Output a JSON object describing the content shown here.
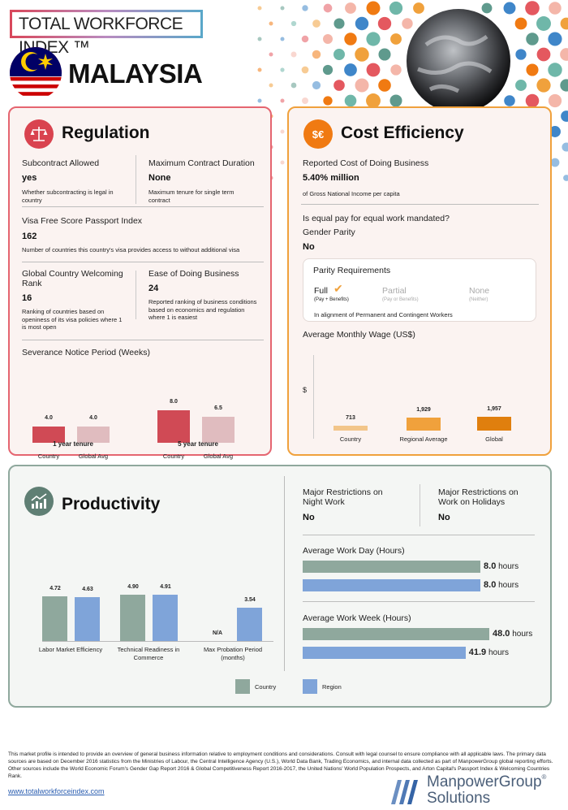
{
  "header": {
    "index_title": "TOTAL WORKFORCE INDEX ™",
    "country": "MALAYSIA"
  },
  "regulation": {
    "title": "Regulation",
    "subcontract": {
      "label": "Subcontract Allowed",
      "value": "yes",
      "desc": "Whether subcontracting is legal in country"
    },
    "max_contract": {
      "label": "Maximum Contract Duration",
      "value": "None",
      "desc": "Maximum tenure for single term contract"
    },
    "visa": {
      "label": "Visa Free Score Passport Index",
      "value": "162",
      "desc": "Number of countries this country's visa provides access to without additional visa"
    },
    "welcoming": {
      "label": "Global Country Welcoming Rank",
      "value": "16",
      "desc": "Ranking of countries based on openiness of its visa policies where 1 is most open"
    },
    "ease": {
      "label": "Ease of Doing Business",
      "value": "24",
      "desc": "Reported ranking of business conditions based on economics and regulation where 1 is easiest"
    },
    "severance_title": "Severance Notice Period (Weeks)"
  },
  "cost": {
    "title": "Cost Efficiency",
    "cost_label": "Reported Cost of Doing Business",
    "cost_value": "5.40% million",
    "cost_desc": "of Gross National Income per capita",
    "equal_pay_q": "Is equal pay for equal work mandated?",
    "gender_label": "Gender Parity",
    "gender_value": "No",
    "parity_title": "Parity Requirements",
    "parity_full": "Full",
    "parity_full_sub": "(Pay + Benefits)",
    "parity_partial": "Partial",
    "parity_partial_sub": "(Pay or Benefits)",
    "parity_none": "None",
    "parity_none_sub": "(Neither)",
    "parity_note": "In alignment of Permanent and Contingent Workers",
    "wage_title": "Average Monthly Wage (US$)",
    "wage_axis": "$"
  },
  "productivity": {
    "title": "Productivity",
    "night": {
      "label": "Major Restrictions on Night Work",
      "value": "No"
    },
    "holidays": {
      "label": "Major Restrictions on Work on Holidays",
      "value": "No"
    },
    "workday_title": "Average Work Day (Hours)",
    "workweek_title": "Average Work Week (Hours)",
    "unit": "hours"
  },
  "chart_data": [
    {
      "type": "bar",
      "title": "Severance Notice Period (Weeks)",
      "groups": [
        "1 year tenure",
        "5 year tenure"
      ],
      "categories": [
        "Country",
        "Global Avg"
      ],
      "series": [
        {
          "group": "1 year tenure",
          "values": [
            4.0,
            4.0
          ],
          "labels": [
            "4.0",
            "4.0"
          ]
        },
        {
          "group": "5 year tenure",
          "values": [
            8.0,
            6.5
          ],
          "labels": [
            "8.0",
            "6.5"
          ]
        }
      ],
      "colors": {
        "country": "#d04a55",
        "global": "#e0bcbf"
      }
    },
    {
      "type": "bar",
      "title": "Average Monthly Wage (US$)",
      "ylabel": "$",
      "categories": [
        "Country",
        "Regional Average",
        "Global"
      ],
      "values": [
        713,
        1929,
        1957
      ],
      "labels": [
        "713",
        "1,929",
        "1,957"
      ],
      "colors": [
        "#f2c58a",
        "#f0a13c",
        "#e07f0e"
      ]
    },
    {
      "type": "bar",
      "categories": [
        "Labor Market Efficiency",
        "Technical Readiness in Commerce",
        "Max Probation Period (months)"
      ],
      "series": [
        {
          "name": "Country",
          "values": [
            4.72,
            4.9,
            null
          ],
          "labels": [
            "4.72",
            "4.90",
            "N/A"
          ]
        },
        {
          "name": "Region",
          "values": [
            4.63,
            4.91,
            3.54
          ],
          "labels": [
            "4.63",
            "4.91",
            "3.54"
          ]
        }
      ],
      "colors": {
        "country": "#8fa89d",
        "region": "#7fa4d9"
      }
    },
    {
      "type": "bar",
      "orientation": "horizontal",
      "title": "Average Work Day (Hours)",
      "series": [
        {
          "name": "Country",
          "value": 8.0,
          "label": "8.0"
        },
        {
          "name": "Region",
          "value": 8.0,
          "label": "8.0"
        }
      ]
    },
    {
      "type": "bar",
      "orientation": "horizontal",
      "title": "Average Work Week (Hours)",
      "series": [
        {
          "name": "Country",
          "value": 48.0,
          "label": "48.0"
        },
        {
          "name": "Region",
          "value": 41.9,
          "label": "41.9"
        }
      ]
    }
  ],
  "legend": {
    "country": "Country",
    "region": "Region"
  },
  "footer": {
    "text": "This market profile is intended to provide an overview of general business information relative to employment conditions and considerations. Consult with legal counsel to ensure compliance with all applicable laws. The primary data sources are based on December 2016 statistics from the Ministries of Labour, the Central Intelligence Agency (U.S.), World Data Bank, Trading Economics, and internal data collected as part of ManpowerGroup global reporting efforts. Other sources include the World Economic Forum's  Gender Gap Report 2016 & Global Competitiveness Report 2016-2017, the United Nations' World Population Prospects, and Arton Capital's Passport Index & Welcoming Countries Rank.",
    "website": "www.totalworkforceindex.com",
    "logo_line1": "ManpowerGroup",
    "logo_line2": "Solutions",
    "logo_tm": "®"
  }
}
